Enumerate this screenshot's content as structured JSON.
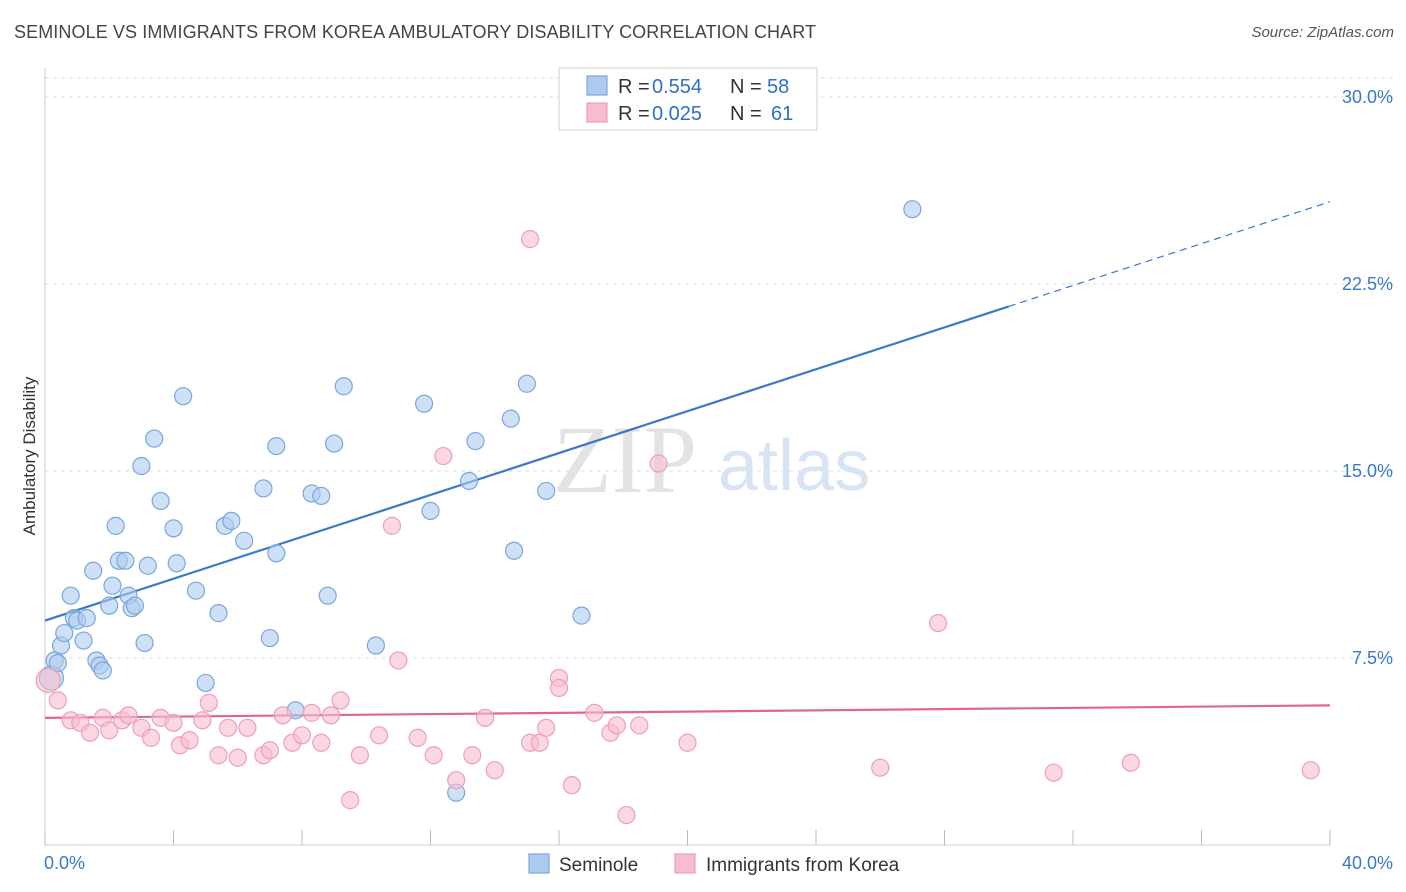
{
  "title": "SEMINOLE VS IMMIGRANTS FROM KOREA AMBULATORY DISABILITY CORRELATION CHART",
  "source": "Source: ZipAtlas.com",
  "watermark": {
    "zip": "ZIP",
    "atlas": "atlas"
  },
  "colors": {
    "blue": "#3a78c8",
    "blue_fill": "#aecbef",
    "blue_stroke": "#7aa7de",
    "pink": "#e0668f",
    "pink_fill": "#f7bcd0",
    "pink_stroke": "#ee9fba",
    "grid": "#dddddd"
  },
  "legend": {
    "rows": [
      {
        "r_label": "R = ",
        "r_value": "0.554",
        "n_label": "N = ",
        "n_value": "58"
      },
      {
        "r_label": "R = ",
        "r_value": "0.025",
        "n_label": "N = ",
        "n_value": "61"
      }
    ]
  },
  "chart_data": {
    "type": "scatter",
    "title": "SEMINOLE VS IMMIGRANTS FROM KOREA AMBULATORY DISABILITY CORRELATION CHART",
    "xlabel": "",
    "ylabel": "Ambulatory Disability",
    "xlim": [
      0,
      40
    ],
    "ylim": [
      0,
      30
    ],
    "x_tick_labels": {
      "min": "0.0%",
      "max": "40.0%"
    },
    "y_ticks": [
      {
        "value": 7.5,
        "label": "7.5%"
      },
      {
        "value": 15,
        "label": "15.0%"
      },
      {
        "value": 22.5,
        "label": "22.5%"
      },
      {
        "value": 30,
        "label": "30.0%"
      }
    ],
    "grid": true,
    "legend_position": "top-center",
    "series": [
      {
        "name": "Seminole",
        "color": "#3a78c8",
        "points": [
          [
            0.2,
            6.7
          ],
          [
            0.3,
            7.4
          ],
          [
            0.4,
            7.3
          ],
          [
            0.5,
            8.0
          ],
          [
            0.6,
            8.5
          ],
          [
            0.8,
            10.0
          ],
          [
            0.9,
            9.1
          ],
          [
            1.0,
            9.0
          ],
          [
            1.2,
            8.2
          ],
          [
            1.3,
            9.1
          ],
          [
            1.5,
            11.0
          ],
          [
            1.6,
            7.4
          ],
          [
            1.7,
            7.2
          ],
          [
            1.8,
            7.0
          ],
          [
            2.0,
            9.6
          ],
          [
            2.1,
            10.4
          ],
          [
            2.2,
            12.8
          ],
          [
            2.3,
            11.4
          ],
          [
            2.5,
            11.4
          ],
          [
            2.6,
            10.0
          ],
          [
            2.7,
            9.5
          ],
          [
            2.8,
            9.6
          ],
          [
            3.0,
            15.2
          ],
          [
            3.1,
            8.1
          ],
          [
            3.2,
            11.2
          ],
          [
            3.4,
            16.3
          ],
          [
            3.6,
            13.8
          ],
          [
            4.0,
            12.7
          ],
          [
            4.1,
            11.3
          ],
          [
            4.3,
            18.0
          ],
          [
            4.7,
            10.2
          ],
          [
            5.0,
            6.5
          ],
          [
            5.4,
            9.3
          ],
          [
            5.6,
            12.8
          ],
          [
            5.8,
            13.0
          ],
          [
            6.2,
            12.2
          ],
          [
            6.8,
            14.3
          ],
          [
            7.0,
            8.3
          ],
          [
            7.2,
            16.0
          ],
          [
            7.2,
            11.7
          ],
          [
            7.8,
            5.4
          ],
          [
            8.3,
            14.1
          ],
          [
            8.6,
            14.0
          ],
          [
            8.8,
            10.0
          ],
          [
            9.0,
            16.1
          ],
          [
            9.3,
            18.4
          ],
          [
            10.3,
            8.0
          ],
          [
            11.8,
            17.7
          ],
          [
            12.0,
            13.4
          ],
          [
            12.8,
            2.1
          ],
          [
            13.2,
            14.6
          ],
          [
            13.4,
            16.2
          ],
          [
            14.5,
            17.1
          ],
          [
            14.6,
            11.8
          ],
          [
            15.0,
            18.5
          ],
          [
            15.6,
            14.2
          ],
          [
            16.7,
            9.2
          ],
          [
            27.0,
            25.5
          ]
        ],
        "trend": {
          "x": [
            0,
            30
          ],
          "y": [
            9.0,
            21.6
          ],
          "dashed_to": [
            40,
            25.8
          ]
        }
      },
      {
        "name": "Immigrants from Korea",
        "color": "#e0668f",
        "points": [
          [
            0.1,
            6.6
          ],
          [
            0.4,
            5.8
          ],
          [
            0.8,
            5.0
          ],
          [
            1.1,
            4.9
          ],
          [
            1.4,
            4.5
          ],
          [
            1.8,
            5.1
          ],
          [
            2.0,
            4.6
          ],
          [
            2.4,
            5.0
          ],
          [
            2.6,
            5.2
          ],
          [
            3.0,
            4.7
          ],
          [
            3.3,
            4.3
          ],
          [
            3.6,
            5.1
          ],
          [
            4.0,
            4.9
          ],
          [
            4.2,
            4.0
          ],
          [
            4.5,
            4.2
          ],
          [
            4.9,
            5.0
          ],
          [
            5.1,
            5.7
          ],
          [
            5.4,
            3.6
          ],
          [
            5.7,
            4.7
          ],
          [
            6.0,
            3.5
          ],
          [
            6.3,
            4.7
          ],
          [
            6.8,
            3.6
          ],
          [
            7.0,
            3.8
          ],
          [
            7.4,
            5.2
          ],
          [
            7.7,
            4.1
          ],
          [
            8.0,
            4.4
          ],
          [
            8.3,
            5.3
          ],
          [
            8.6,
            4.1
          ],
          [
            8.9,
            5.2
          ],
          [
            9.2,
            5.8
          ],
          [
            9.5,
            1.8
          ],
          [
            9.8,
            3.6
          ],
          [
            10.4,
            4.4
          ],
          [
            10.8,
            12.8
          ],
          [
            11.0,
            7.4
          ],
          [
            11.6,
            4.3
          ],
          [
            12.1,
            3.6
          ],
          [
            12.4,
            15.6
          ],
          [
            12.8,
            2.6
          ],
          [
            13.3,
            3.6
          ],
          [
            13.7,
            5.1
          ],
          [
            14.0,
            3.0
          ],
          [
            15.1,
            4.1
          ],
          [
            15.4,
            4.1
          ],
          [
            15.6,
            4.7
          ],
          [
            15.1,
            24.3
          ],
          [
            16.0,
            6.7
          ],
          [
            16.0,
            6.3
          ],
          [
            16.4,
            2.4
          ],
          [
            17.1,
            5.3
          ],
          [
            17.6,
            4.5
          ],
          [
            17.8,
            4.8
          ],
          [
            18.1,
            1.2
          ],
          [
            18.5,
            4.8
          ],
          [
            19.1,
            15.3
          ],
          [
            20.0,
            4.1
          ],
          [
            26.0,
            3.1
          ],
          [
            27.8,
            8.9
          ],
          [
            31.4,
            2.9
          ],
          [
            33.8,
            3.3
          ],
          [
            39.4,
            3.0
          ]
        ],
        "trend": {
          "x": [
            0,
            40
          ],
          "y": [
            5.1,
            5.6
          ]
        }
      }
    ]
  }
}
